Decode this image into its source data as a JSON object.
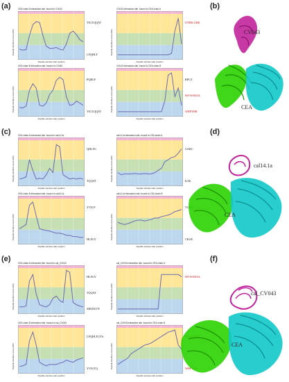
{
  "panels": {
    "a": {
      "label": "(a)",
      "plots": [
        {
          "title": "CEA chain A interaction site, bound to CV043",
          "ylabel": "Peptide interface score (RD)",
          "xlabel": "Peptide window start position",
          "bands": [
            "#ffe699",
            "#ffe699",
            "#c6e0b4",
            "#bdd7ee"
          ],
          "seq": [
            {
              "text": "YIGTQQAT",
              "red": false
            },
            {
              "text": "LPQHLF",
              "red": false
            }
          ],
          "line": [
            0.18,
            0.16,
            0.17,
            0.5,
            0.75,
            0.82,
            0.8,
            0.5,
            0.25,
            0.2,
            0.2,
            0.22,
            0.18,
            0.16,
            0.3,
            0.55,
            0.6,
            0.52,
            0.4,
            0.35
          ]
        },
        {
          "title": "CV043 interaction site, bound to CEA chain A",
          "ylabel": "Peptide interface score (RD)",
          "xlabel": "Peptide window start position",
          "bands": [
            "#ffe699",
            "#ffe699",
            "#c6e0b4",
            "#bdd7ee"
          ],
          "seq": [
            {
              "text": "IVRRLGHK",
              "red": true
            }
          ],
          "line": [
            0.05,
            0.05,
            0.05,
            0.05,
            0.05,
            0.05,
            0.05,
            0.05,
            0.05,
            0.05,
            0.05,
            0.05,
            0.05,
            0.05,
            0.05,
            0.05,
            0.08,
            0.6,
            0.9,
            0.3
          ]
        },
        {
          "title": "CEA chain B interaction site, bound to CV043",
          "ylabel": "Peptide interface score (RD)",
          "xlabel": "Peptide window start position",
          "bands": [
            "#ffe699",
            "#ffe699",
            "#c6e0b4",
            "#bdd7ee"
          ],
          "seq": [
            {
              "text": "PQHLF",
              "red": false
            },
            {
              "text": "YIGTQQAT",
              "red": false
            }
          ],
          "line": [
            0.15,
            0.14,
            0.18,
            0.55,
            0.7,
            0.6,
            0.2,
            0.18,
            0.25,
            0.45,
            0.55,
            0.78,
            0.85,
            0.8,
            0.4,
            0.2,
            0.22,
            0.3,
            0.25,
            0.2
          ]
        },
        {
          "title": "CV043 interaction site, bound to CEA chain B",
          "ylabel": "Peptide interface score (RD)",
          "xlabel": "Peptide window start position",
          "bands": [
            "#ffe699",
            "#ffe699",
            "#c6e0b4",
            "#bdd7ee"
          ],
          "seq": [
            {
              "text": "RPGT",
              "red": false
            },
            {
              "text": "MVWSWGL",
              "red": true
            },
            {
              "text": "WRPYRR",
              "red": true
            }
          ],
          "line": [
            0.05,
            0.05,
            0.05,
            0.05,
            0.05,
            0.05,
            0.05,
            0.05,
            0.05,
            0.05,
            0.05,
            0.05,
            0.05,
            0.05,
            0.3,
            0.9,
            0.95,
            0.4,
            0.6,
            0.2
          ]
        }
      ]
    },
    "b": {
      "label": "(b)",
      "name": "CV043",
      "target": "CEA"
    },
    "c": {
      "label": "(c)",
      "plots": [
        {
          "title": "CEA chain A interaction site, bound to cal14.1a",
          "ylabel": "Peptide interface score (RD)",
          "xlabel": "Peptide window start position",
          "bands": [
            "#ffe699",
            "#ffe699",
            "#c6e0b4",
            "#bdd7ee"
          ],
          "seq": [
            {
              "text": "QHLFG",
              "red": false
            },
            {
              "text": "TQQAT",
              "red": false
            }
          ],
          "line": [
            0.1,
            0.12,
            0.15,
            0.55,
            0.3,
            0.1,
            0.12,
            0.1,
            0.2,
            0.35,
            0.25,
            0.9,
            0.85,
            0.2,
            0.15,
            0.1,
            0.12,
            0.1,
            0.12,
            0.1
          ]
        },
        {
          "title": "cal14.1a interaction site, bound to CEA chain A",
          "ylabel": "Peptide interface score (RD)",
          "xlabel": "Peptide window start position",
          "bands": [
            "#ffe699",
            "#ffe699",
            "#c6e0b4",
            "#bdd7ee"
          ],
          "seq": [
            {
              "text": "GARC",
              "red": false
            },
            {
              "text": "KAE",
              "red": false
            }
          ],
          "line": [
            0.25,
            0.2,
            0.22,
            0.22,
            0.22,
            0.23,
            0.22,
            0.22,
            0.23,
            0.22,
            0.22,
            0.25,
            0.3,
            0.35,
            0.5,
            0.55,
            0.6,
            0.62,
            0.7,
            0.8
          ]
        },
        {
          "title": "CEA chain B interaction site, bound to cal14.1a",
          "ylabel": "Peptide interface score (RD)",
          "xlabel": "Peptide window start position",
          "bands": [
            "#ffe699",
            "#ffe699",
            "#c6e0b4",
            "#bdd7ee"
          ],
          "seq": [
            {
              "text": "YVICF",
              "red": false
            },
            {
              "text": "HLFGV",
              "red": false
            }
          ],
          "line": [
            0.3,
            0.35,
            0.4,
            0.85,
            0.92,
            0.6,
            0.3,
            0.28,
            0.26,
            0.25,
            0.22,
            0.2,
            0.2,
            0.18,
            0.15,
            0.15,
            0.12,
            0.12,
            0.1,
            0.1
          ]
        },
        {
          "title": "cal14.1a interaction site, bound to CEA chain B",
          "ylabel": "Peptide interface score (RD)",
          "xlabel": "Peptide window start position",
          "bands": [
            "#ffe699",
            "#ffe699",
            "#c6e0b4",
            "#bdd7ee"
          ],
          "seq": [
            {
              "text": "YGAR",
              "red": false
            },
            {
              "text": "CRAE",
              "red": false
            }
          ],
          "line": [
            0.45,
            0.42,
            0.4,
            0.42,
            0.45,
            0.48,
            0.5,
            0.5,
            0.48,
            0.5,
            0.52,
            0.55,
            0.55,
            0.58,
            0.6,
            0.62,
            0.65,
            0.7,
            0.72,
            0.75
          ]
        }
      ]
    },
    "d": {
      "label": "(d)",
      "name": "cal14.1a",
      "target": "CEA"
    },
    "e": {
      "label": "(e)",
      "plots": [
        {
          "title": "CEA chain A interaction site, bound to cal_CV043",
          "ylabel": "Peptide interface score (RD)",
          "xlabel": "Peptide window start position",
          "bands": [
            "#ffe699",
            "#ffe699",
            "#c6e0b4",
            "#bdd7ee"
          ],
          "seq": [
            {
              "text": "HLFGV",
              "red": false
            },
            {
              "text": "TQQAT",
              "red": false
            },
            {
              "text": "SRSDLVN",
              "red": false
            }
          ],
          "line": [
            0.1,
            0.1,
            0.12,
            0.7,
            0.85,
            0.4,
            0.15,
            0.12,
            0.1,
            0.15,
            0.3,
            0.35,
            0.25,
            0.2,
            0.95,
            0.9,
            0.2,
            0.15,
            0.12,
            0.1
          ]
        },
        {
          "title": "cal_CV043 interaction site, bound to CEA chain A",
          "ylabel": "Peptide interface score (RD)",
          "xlabel": "Peptide window start position",
          "bands": [
            "#ffe699",
            "#ffe699",
            "#c6e0b4",
            "#bdd7ee"
          ],
          "seq": [
            {
              "text": "MVWSWGL",
              "red": true
            }
          ],
          "line": [
            0.05,
            0.05,
            0.05,
            0.05,
            0.05,
            0.05,
            0.05,
            0.05,
            0.05,
            0.05,
            0.05,
            0.05,
            0.05,
            0.85,
            0.85,
            0.85,
            0.85,
            0.85,
            0.85,
            0.8
          ]
        },
        {
          "title": "CEA chain B interaction site, bound to cal_CV043",
          "ylabel": "Peptide interface score (RD)",
          "xlabel": "Peptide window start position",
          "bands": [
            "#ffe699",
            "#ffe699",
            "#c6e0b4",
            "#bdd7ee"
          ],
          "seq": [
            {
              "text": "LPQHLFGYS",
              "red": false
            },
            {
              "text": "YVIGTQ",
              "red": false
            }
          ],
          "line": [
            0.1,
            0.12,
            0.15,
            0.7,
            0.9,
            0.6,
            0.2,
            0.15,
            0.12,
            0.15,
            0.15,
            0.15,
            0.18,
            0.2,
            0.25,
            0.22,
            0.2,
            0.25,
            0.28,
            0.3
          ]
        },
        {
          "title": "cal_CV043 interaction site, bound to CEA chain B",
          "ylabel": "Peptide interface score (RD)",
          "xlabel": "Peptide window start position",
          "bands": [
            "#ffe699",
            "#ffe699",
            "#c6e0b4",
            "#bdd7ee"
          ],
          "seq": [
            {
              "text": "MVWSWGL",
              "red": true
            },
            {
              "text": "WRPYRR",
              "red": true
            }
          ],
          "line": [
            0.15,
            0.2,
            0.25,
            0.3,
            0.4,
            0.45,
            0.5,
            0.55,
            0.6,
            0.62,
            0.65,
            0.7,
            0.75,
            0.8,
            0.85,
            0.9,
            0.92,
            0.95,
            0.6,
            0.5
          ]
        }
      ]
    },
    "f": {
      "label": "(f)",
      "name": "cal_CV043",
      "target": "CEA"
    }
  },
  "colors": {
    "green": "#2bd100",
    "cyan": "#11c8c8",
    "magenta": "#c1239b",
    "line": "#6a6ab0"
  }
}
